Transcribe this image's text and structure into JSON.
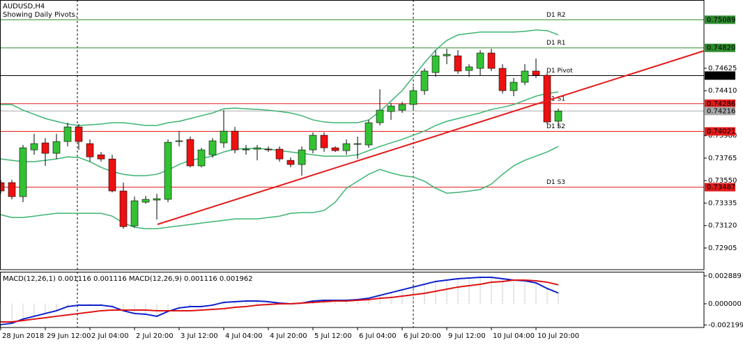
{
  "chart_data": [
    {
      "type": "candlestick",
      "title": "AUDUSD,H4",
      "subtitle": "Showing Daily Pivots.",
      "categories": [
        "28 Jun 2018",
        null,
        null,
        null,
        "29 Jun 12:00",
        null,
        null,
        null,
        "2 Jul 04:00",
        null,
        null,
        null,
        "2 Jul 20:00",
        null,
        null,
        null,
        "3 Jul 12:00",
        null,
        null,
        null,
        "4 Jul 04:00",
        null,
        null,
        null,
        "4 Jul 20:00",
        null,
        null,
        null,
        "5 Jul 12:00",
        null,
        null,
        null,
        "6 Jul 04:00",
        null,
        null,
        null,
        "6 Jul 20:00",
        null,
        null,
        null,
        "9 Jul 12:00",
        null,
        null,
        null,
        "10 Jul 04:00",
        null,
        null,
        null,
        "10 Jul 20:00",
        null,
        null
      ],
      "open": [
        0.73531,
        0.73531,
        0.73397,
        0.73844,
        0.73911,
        0.73811,
        0.73924,
        0.74064,
        0.73904,
        0.73797,
        0.73757,
        0.73451,
        0.73117,
        0.73344,
        0.73364,
        0.73371,
        0.73924,
        0.73944,
        0.73691,
        0.73797,
        0.73911,
        0.74024,
        0.73844,
        0.73851,
        0.73851,
        0.73851,
        0.73744,
        0.73704,
        0.73844,
        0.73984,
        0.73864,
        0.73837,
        0.73897,
        0.73891,
        0.74104,
        0.74211,
        0.74224,
        0.74278,
        0.74411,
        0.74584,
        0.74744,
        0.74744,
        0.74604,
        0.74624,
        0.74771,
        0.74624,
        0.74411,
        0.74491,
        0.74598,
        0.74558,
        0.74118
      ],
      "high": [
        0.73557,
        0.73557,
        0.73891,
        0.73997,
        0.73957,
        0.73997,
        0.74104,
        0.74091,
        0.73944,
        0.73824,
        0.73797,
        0.73531,
        0.73397,
        0.73404,
        0.73424,
        0.73944,
        0.74024,
        0.73971,
        0.73864,
        0.73957,
        0.74224,
        0.74064,
        0.73891,
        0.73891,
        0.73877,
        0.73877,
        0.73771,
        0.73877,
        0.74011,
        0.74011,
        0.73877,
        0.73944,
        0.73971,
        0.74131,
        0.74424,
        0.74291,
        0.74304,
        0.74451,
        0.74624,
        0.74798,
        0.74811,
        0.74798,
        0.74664,
        0.74798,
        0.74811,
        0.74664,
        0.74531,
        0.74664,
        0.74718,
        0.74584,
        0.74238
      ],
      "low": [
        0.73424,
        0.73371,
        0.73344,
        0.73797,
        0.73691,
        0.73757,
        0.73877,
        0.73844,
        0.73731,
        0.73731,
        0.73437,
        0.7309,
        0.73104,
        0.7333,
        0.73177,
        0.73344,
        0.73877,
        0.73677,
        0.73677,
        0.73771,
        0.73864,
        0.73811,
        0.73797,
        0.73744,
        0.73824,
        0.73731,
        0.73677,
        0.73597,
        0.73811,
        0.73824,
        0.73824,
        0.73797,
        0.73757,
        0.73864,
        0.74078,
        0.74131,
        0.74198,
        0.74238,
        0.74371,
        0.74544,
        0.74664,
        0.74571,
        0.74544,
        0.74558,
        0.74598,
        0.74384,
        0.74358,
        0.74464,
        0.74531,
        0.74091,
        0.74051
      ],
      "close": [
        0.73451,
        0.73397,
        0.73864,
        0.73904,
        0.73811,
        0.73924,
        0.74064,
        0.73924,
        0.73777,
        0.73757,
        0.73451,
        0.7311,
        0.73357,
        0.73371,
        0.73377,
        0.73917,
        0.73931,
        0.73691,
        0.73844,
        0.73931,
        0.74024,
        0.73844,
        0.73851,
        0.73864,
        0.73844,
        0.73757,
        0.73704,
        0.73844,
        0.73984,
        0.73864,
        0.73837,
        0.73904,
        0.73904,
        0.74104,
        0.74224,
        0.74264,
        0.74278,
        0.74411,
        0.74598,
        0.74744,
        0.74758,
        0.74598,
        0.74638,
        0.74771,
        0.74624,
        0.74411,
        0.74491,
        0.74598,
        0.74558,
        0.74111,
        0.74216
      ],
      "up_color": "#33c233",
      "down_color": "#ee1111",
      "wick_color": "#000000",
      "bands": [
        {
          "color": "#3cb371",
          "values": [
            0.74277,
            0.74277,
            0.74224,
            0.74184,
            0.74144,
            0.74117,
            0.74091,
            0.74077,
            0.74084,
            0.74091,
            0.74104,
            0.74104,
            0.74091,
            0.74077,
            0.74077,
            0.74104,
            0.74117,
            0.74144,
            0.74171,
            0.74197,
            0.74237,
            0.74244,
            0.74237,
            0.74231,
            0.74224,
            0.74211,
            0.74197,
            0.74171,
            0.74131,
            0.74111,
            0.74104,
            0.74104,
            0.74104,
            0.74131,
            0.74211,
            0.74311,
            0.74411,
            0.74544,
            0.74678,
            0.74798,
            0.74891,
            0.74944,
            0.74958,
            0.74971,
            0.74971,
            0.74971,
            0.74971,
            0.74978,
            0.74991,
            0.74985,
            0.74944
          ]
        },
        {
          "color": "#3cb371",
          "values": [
            0.73757,
            0.73744,
            0.73731,
            0.73731,
            0.73744,
            0.73757,
            0.73777,
            0.73771,
            0.73731,
            0.73677,
            0.73637,
            0.7361,
            0.73597,
            0.73597,
            0.7361,
            0.73651,
            0.73704,
            0.73744,
            0.73764,
            0.73784,
            0.73824,
            0.73851,
            0.73857,
            0.73857,
            0.73851,
            0.73837,
            0.73824,
            0.73811,
            0.73797,
            0.73784,
            0.73784,
            0.73784,
            0.73797,
            0.73837,
            0.73877,
            0.73911,
            0.73944,
            0.73984,
            0.74024,
            0.74077,
            0.74117,
            0.74144,
            0.74171,
            0.74197,
            0.74231,
            0.74251,
            0.74277,
            0.74318,
            0.74358,
            0.74384,
            0.74398
          ]
        },
        {
          "color": "#3cb371",
          "values": [
            0.73224,
            0.73197,
            0.73197,
            0.7321,
            0.73224,
            0.73237,
            0.73237,
            0.73237,
            0.73237,
            0.73237,
            0.7321,
            0.73144,
            0.73104,
            0.7309,
            0.7309,
            0.73104,
            0.73117,
            0.7313,
            0.73144,
            0.73157,
            0.7317,
            0.73184,
            0.73184,
            0.73184,
            0.73197,
            0.7321,
            0.73237,
            0.73244,
            0.73244,
            0.73264,
            0.73344,
            0.73477,
            0.73544,
            0.7361,
            0.73657,
            0.73624,
            0.73597,
            0.73584,
            0.73544,
            0.73477,
            0.7343,
            0.73437,
            0.7345,
            0.73464,
            0.73517,
            0.7361,
            0.73691,
            0.73744,
            0.73784,
            0.73824,
            0.73877
          ]
        }
      ],
      "levels": [
        {
          "name": "D1 R2",
          "value": 0.75089,
          "label": "0.75089",
          "color": "#2e8b2e"
        },
        {
          "name": "D1 R1",
          "value": 0.7482,
          "label": "0.74820",
          "color": "#2e8b2e"
        },
        {
          "name": "D1 Pivot",
          "value": 0.74555,
          "label": "0.74555",
          "color": "#000000"
        },
        {
          "name": "D1 S1",
          "value": 0.74286,
          "label": "0.74286",
          "color": "#e31a1a"
        },
        {
          "name": "D1 S2",
          "value": 0.74021,
          "label": "0.74021",
          "color": "#e31a1a"
        },
        {
          "name": "D1 S3",
          "value": 0.73487,
          "label": "0.73487",
          "color": "#e31a1a"
        }
      ],
      "current_price": {
        "value": 0.74216,
        "label": "0.74216",
        "color": "#a9a9a9"
      },
      "ylim": [
        0.72698,
        0.75278
      ],
      "yticks": [
        0.74625,
        {
          "value": 0.7441,
          "label": "0.74410"
        },
        {
          "value": 0.7398,
          "label": "0.73980"
        },
        0.73765,
        {
          "value": 0.7355,
          "label": "0.73550"
        },
        0.73335,
        {
          "value": 0.7312,
          "label": "0.73120"
        },
        0.72905
      ]
    },
    {
      "type": "macd",
      "legend": "MACD(12,26,1) 0.001116 0.001116 MACD(12,26,9) 0.001116 0.001962",
      "series": [
        {
          "color": "#0a1ecc",
          "histogram_color": "#a0a0a0",
          "values": [
            -0.002167,
            -0.002022,
            -0.001589,
            -0.0013,
            -0.001011,
            -0.000722,
            -0.000289,
            -0.000144,
            -0.000144,
            -0.000144,
            -0.000289,
            -0.000722,
            -0.001011,
            -0.001083,
            -0.0013,
            -0.000795,
            -0.000433,
            -0.000289,
            -0.000289,
            -0.000144,
            0.000144,
            0.000217,
            0.000289,
            0.000289,
            0.000217,
            7.2e-05,
            0,
            7.2e-05,
            0.000289,
            0.000361,
            0.000361,
            0.000361,
            0.000433,
            0.000578,
            0.000867,
            0.001156,
            0.001445,
            0.001734,
            0.002022,
            0.002311,
            0.002456,
            0.0026,
            0.002673,
            0.002745,
            0.002745,
            0.0026,
            0.002456,
            0.002384,
            0.002167,
            0.001589,
            0.001116
          ]
        },
        {
          "color": "#dd1111",
          "values": [
            -0.001878,
            -0.001878,
            -0.001734,
            -0.001589,
            -0.001445,
            -0.0013,
            -0.001156,
            -0.001011,
            -0.000867,
            -0.000722,
            -0.00065,
            -0.00065,
            -0.00065,
            -0.00065,
            -0.000722,
            -0.000722,
            -0.000722,
            -0.000722,
            -0.00065,
            -0.000578,
            -0.000506,
            -0.000361,
            -0.000289,
            -0.000144,
            -7.2e-05,
            0,
            0,
            7.2e-05,
            0.000144,
            0.000217,
            0.000289,
            0.000289,
            0.000361,
            0.000433,
            0.000578,
            0.00065,
            0.000795,
            0.000939,
            0.001083,
            0.0013,
            0.001517,
            0.001734,
            0.001878,
            0.002022,
            0.002239,
            0.002311,
            0.002456,
            0.002456,
            0.002384,
            0.002239,
            0.001962
          ]
        }
      ],
      "ylim": [
        -0.00246,
        0.00332
      ],
      "yticks": [
        0.002889,
        {
          "value": 0,
          "label": "0.000000"
        },
        -0.002199
      ]
    }
  ]
}
